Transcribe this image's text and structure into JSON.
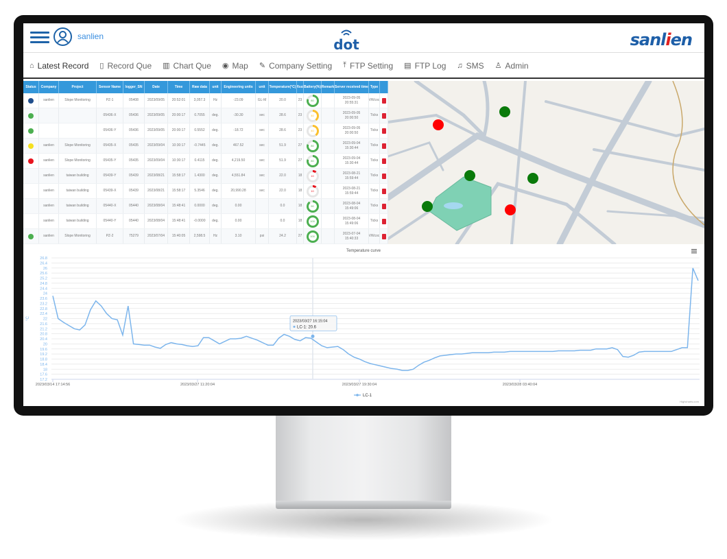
{
  "header": {
    "username": "sanlien",
    "center_logo": "dot",
    "brand_logo": "sanlien"
  },
  "nav": [
    {
      "label": "Latest Record",
      "icon": "home-icon",
      "active": true
    },
    {
      "label": "Record Que",
      "icon": "tablet-icon"
    },
    {
      "label": "Chart Que",
      "icon": "bar-chart-icon"
    },
    {
      "label": "Map",
      "icon": "map-pin-icon"
    },
    {
      "label": "Company Setting",
      "icon": "edit-icon"
    },
    {
      "label": "FTP Setting",
      "icon": "upload-icon"
    },
    {
      "label": "FTP Log",
      "icon": "file-icon"
    },
    {
      "label": "SMS",
      "icon": "bell-icon"
    },
    {
      "label": "Admin",
      "icon": "user-icon"
    }
  ],
  "table": {
    "columns": [
      "Status",
      "Company",
      "Project",
      "Sensor Name",
      "logger_SN",
      "Date",
      "Time",
      "Raw data",
      "unit",
      "Engineering units",
      "unit",
      "Temperature(°C)",
      "Rssi",
      "Battery(%)",
      "Remark",
      "Server received time",
      "Type",
      ""
    ],
    "rows": [
      {
        "status": "#1f4e8c",
        "company": "sanlien",
        "project": "Slope Monitoring",
        "sensor": "PZ-1",
        "logger": "05408",
        "date": "2023/09/05",
        "time": "20:52:01",
        "raw": "3,057.3",
        "unit": "Hz",
        "eng": "-23.09",
        "unit2": "GL-M",
        "temp": "20.0",
        "rssi": "23",
        "battery": 80,
        "remark": "",
        "server_date": "2023-09-05",
        "server_time": "20:55:31",
        "type": "VWcoc"
      },
      {
        "status": "#4caf50",
        "company": "",
        "project": "",
        "sensor": "05436-X",
        "logger": "05436",
        "date": "2023/09/05",
        "time": "20:00:17",
        "raw": "0.7055",
        "unit": "deg.",
        "eng": "-30.30",
        "unit2": "sec",
        "temp": "28.6",
        "rssi": "23",
        "battery": 40,
        "remark": "",
        "server_date": "2023-09-05",
        "server_time": "20:00:50",
        "type": "Ticks"
      },
      {
        "status": "#4caf50",
        "company": "",
        "project": "",
        "sensor": "05436-Y",
        "logger": "05436",
        "date": "2023/09/05",
        "time": "20:00:17",
        "raw": "0.5552",
        "unit": "deg.",
        "eng": "-18.72",
        "unit2": "sec",
        "temp": "28.6",
        "rssi": "23",
        "battery": 40,
        "remark": "",
        "server_date": "2023-09-05",
        "server_time": "20:00:50",
        "type": "Ticks"
      },
      {
        "status": "#f5e020",
        "company": "sanlien",
        "project": "Slope Monitoring",
        "sensor": "05435-X",
        "logger": "05435",
        "date": "2023/09/04",
        "time": "10:30:17",
        "raw": "-0.7445",
        "unit": "deg.",
        "eng": "467.52",
        "unit2": "sec",
        "temp": "51.9",
        "rssi": "27",
        "battery": 80,
        "remark": "",
        "server_date": "2023-09-04",
        "server_time": "15:30:44",
        "type": "Ticks"
      },
      {
        "status": "#e8141e",
        "company": "sanlien",
        "project": "Slope Monitoring",
        "sensor": "05435-Y",
        "logger": "05435",
        "date": "2023/09/04",
        "time": "10:30:17",
        "raw": "0.4115",
        "unit": "deg.",
        "eng": "4,219.50",
        "unit2": "sec",
        "temp": "51.9",
        "rssi": "27",
        "battery": 80,
        "remark": "",
        "server_date": "2023-09-04",
        "server_time": "15:30:44",
        "type": "Ticks"
      },
      {
        "status": "",
        "company": "sanlien",
        "project": "taiwan building",
        "sensor": "05439-Y",
        "logger": "05439",
        "date": "2023/08/21",
        "time": "15:58:17",
        "raw": "1.4300",
        "unit": "deg.",
        "eng": "4,551.84",
        "unit2": "sec",
        "temp": "22.0",
        "rssi": "18",
        "battery": 10,
        "remark": "",
        "server_date": "2023-08-21",
        "server_time": "15:59:44",
        "type": "Ticks"
      },
      {
        "status": "",
        "company": "sanlien",
        "project": "taiwan building",
        "sensor": "05439-X",
        "logger": "05439",
        "date": "2023/08/21",
        "time": "15:58:17",
        "raw": "5.3546",
        "unit": "deg.",
        "eng": "20,990.28",
        "unit2": "sec",
        "temp": "22.0",
        "rssi": "18",
        "battery": 10,
        "remark": "",
        "server_date": "2023-08-21",
        "server_time": "15:59:44",
        "type": "Ticks"
      },
      {
        "status": "",
        "company": "sanlien",
        "project": "taiwan building",
        "sensor": "05440-X",
        "logger": "05440",
        "date": "2023/08/04",
        "time": "15:48:41",
        "raw": "0.0000",
        "unit": "deg.",
        "eng": "0.00",
        "unit2": "",
        "temp": "0.0",
        "rssi": "18",
        "battery": 90,
        "remark": "",
        "server_date": "2023-08-04",
        "server_time": "15:49:06",
        "type": "Ticks"
      },
      {
        "status": "",
        "company": "sanlien",
        "project": "taiwan building",
        "sensor": "05440-Y",
        "logger": "05440",
        "date": "2023/08/04",
        "time": "15:48:41",
        "raw": "-0.0000",
        "unit": "deg.",
        "eng": "0.00",
        "unit2": "",
        "temp": "0.0",
        "rssi": "18",
        "battery": 100,
        "remark": "",
        "server_date": "2023-08-04",
        "server_time": "15:49:06",
        "type": "Ticks"
      },
      {
        "status": "#4caf50",
        "company": "sanlien",
        "project": "Slope Monitoring",
        "sensor": "PZ-2",
        "logger": "75279",
        "date": "2023/07/04",
        "time": "15:40:05",
        "raw": "2,598.5",
        "unit": "Hz",
        "eng": "3.10",
        "unit2": "psi",
        "temp": "24.2",
        "rssi": "27",
        "battery": 100,
        "remark": "",
        "server_date": "2023-07-04",
        "server_time": "15:40:33",
        "type": "VWcoc"
      }
    ]
  },
  "colors": {
    "header_blue": "#3498db",
    "line": "#7cb5ec",
    "good": "#4caf50",
    "warn": "#fbc02d",
    "alarm": "#e8141e",
    "marker_green": "#0a7a0a",
    "marker_red": "#ff0000"
  },
  "map": {
    "markers": [
      {
        "color": "red"
      },
      {
        "color": "green"
      },
      {
        "color": "green"
      },
      {
        "color": "green"
      },
      {
        "color": "green"
      },
      {
        "color": "red"
      }
    ]
  },
  "chart_data": {
    "type": "line",
    "title": "Temperature curve",
    "ylabel": "°C",
    "ylim": [
      17.2,
      26.8
    ],
    "ytick_step": 0.4,
    "grid": true,
    "xtick_labels": [
      "2023/03/14 17:14:56",
      "2023/03/27 11:20:04",
      "2023/03/27 19:30:04",
      "2023/03/28 03:40:04"
    ],
    "legend": "bottom-center",
    "credits": "Highcharts.com",
    "menu_icon": "hamburger-icon",
    "tooltip": {
      "date": "2023/03/27 16:15:04",
      "series": "LC-1",
      "value": "20.6"
    },
    "series": [
      {
        "name": "LC-1",
        "values": [
          23.8,
          22.0,
          21.7,
          21.45,
          21.2,
          21.1,
          21.5,
          22.7,
          23.4,
          23.0,
          22.4,
          22.0,
          21.9,
          20.7,
          23.0,
          20.0,
          19.95,
          19.9,
          19.9,
          19.75,
          19.65,
          19.95,
          20.1,
          20.0,
          19.95,
          19.85,
          19.8,
          19.85,
          20.5,
          20.5,
          20.25,
          20.0,
          20.2,
          20.4,
          20.4,
          20.45,
          20.6,
          20.45,
          20.3,
          20.1,
          19.9,
          19.9,
          20.45,
          20.75,
          20.6,
          20.35,
          20.25,
          20.5,
          20.45,
          20.15,
          19.85,
          19.7,
          19.75,
          19.8,
          19.55,
          19.2,
          18.95,
          18.8,
          18.6,
          18.45,
          18.35,
          18.25,
          18.15,
          18.05,
          18.0,
          17.9,
          17.9,
          18.0,
          18.3,
          18.55,
          18.7,
          18.9,
          19.05,
          19.1,
          19.15,
          19.2,
          19.2,
          19.25,
          19.3,
          19.3,
          19.3,
          19.3,
          19.35,
          19.35,
          19.35,
          19.4,
          19.4,
          19.4,
          19.4,
          19.4,
          19.4,
          19.4,
          19.4,
          19.4,
          19.45,
          19.45,
          19.45,
          19.45,
          19.5,
          19.5,
          19.5,
          19.6,
          19.6,
          19.6,
          19.7,
          19.55,
          19.0,
          18.95,
          19.1,
          19.35,
          19.4,
          19.4,
          19.4,
          19.4,
          19.4,
          19.4,
          19.55,
          19.7,
          19.7,
          26.0,
          25.0
        ]
      }
    ]
  }
}
